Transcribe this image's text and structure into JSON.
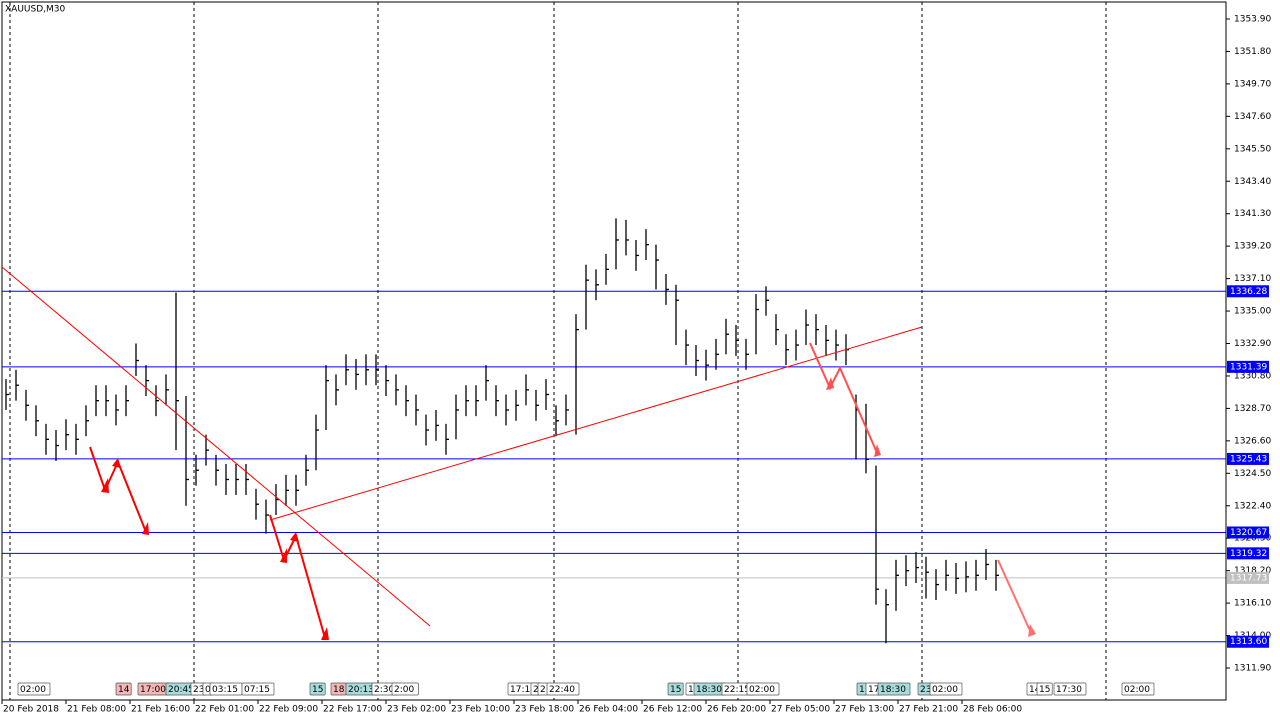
{
  "chart_data": {
    "type": "ohlc",
    "title": "XAUUSD,M30",
    "x": [
      0,
      1,
      2,
      3,
      4,
      5,
      6,
      7,
      8,
      9,
      10,
      11,
      12,
      13,
      14,
      15,
      16,
      17,
      18,
      19,
      20,
      21,
      22,
      23,
      24,
      25,
      26,
      27,
      28,
      29,
      30,
      31,
      32,
      33,
      34,
      35,
      36,
      37,
      38,
      39,
      40,
      41,
      42,
      43,
      44,
      45,
      46,
      47,
      48,
      49,
      50,
      51,
      52,
      53,
      54,
      55,
      56,
      57,
      58,
      59,
      60,
      61,
      62,
      63,
      64,
      65,
      66,
      67,
      68,
      69,
      70,
      71,
      72,
      73,
      74,
      75,
      76,
      77,
      78,
      79,
      80,
      81,
      82,
      83,
      84,
      85,
      86,
      87,
      88,
      89,
      90,
      91,
      92,
      93,
      94,
      95,
      96,
      97,
      98,
      99
    ],
    "high": [
      1330.6,
      1331.2,
      1329.9,
      1328.9,
      1327.7,
      1327.3,
      1328.0,
      1327.7,
      1328.9,
      1330.2,
      1330.2,
      1329.6,
      1330.2,
      1332.9,
      1331.5,
      1330.2,
      1330.9,
      1336.2,
      1329.5,
      1325.7,
      1327.0,
      1325.7,
      1325.1,
      1325.1,
      1325.1,
      1323.5,
      1322.8,
      1323.8,
      1324.4,
      1324.4,
      1325.7,
      1328.3,
      1331.5,
      1330.9,
      1332.2,
      1331.9,
      1332.2,
      1332.2,
      1331.5,
      1330.9,
      1330.2,
      1329.6,
      1328.3,
      1328.6,
      1327.7,
      1329.6,
      1330.2,
      1330.2,
      1331.5,
      1330.2,
      1329.6,
      1329.9,
      1330.9,
      1329.9,
      1330.6,
      1328.9,
      1329.6,
      1334.8,
      1338.0,
      1337.7,
      1338.7,
      1341.0,
      1340.9,
      1339.6,
      1340.3,
      1339.3,
      1337.4,
      1336.7,
      1333.8,
      1332.8,
      1332.5,
      1333.2,
      1334.5,
      1334.1,
      1333.2,
      1336.1,
      1336.6,
      1334.8,
      1333.5,
      1333.8,
      1335.1,
      1334.8,
      1334.1,
      1333.8,
      1333.5,
      1329.6,
      1329.0,
      1325.0,
      1317.0,
      1318.9,
      1319.2,
      1319.4,
      1319.1,
      1318.3,
      1318.9,
      1318.7,
      1318.8,
      1318.9,
      1319.6,
      1318.9
    ],
    "low": [
      1328.6,
      1329.2,
      1327.9,
      1326.9,
      1325.7,
      1325.3,
      1326.0,
      1325.7,
      1326.9,
      1328.2,
      1328.2,
      1327.6,
      1328.2,
      1330.8,
      1329.5,
      1328.2,
      1328.9,
      1326.0,
      1322.4,
      1323.7,
      1325.0,
      1323.7,
      1323.1,
      1323.1,
      1323.1,
      1321.5,
      1320.6,
      1321.8,
      1322.4,
      1322.4,
      1323.7,
      1324.7,
      1327.3,
      1328.9,
      1330.2,
      1329.9,
      1330.2,
      1330.2,
      1329.5,
      1328.9,
      1328.2,
      1327.6,
      1326.3,
      1326.6,
      1325.7,
      1326.7,
      1328.2,
      1328.2,
      1329.2,
      1328.2,
      1327.6,
      1327.9,
      1328.9,
      1327.9,
      1328.6,
      1326.9,
      1327.6,
      1327.0,
      1333.8,
      1335.7,
      1336.7,
      1337.7,
      1338.6,
      1337.6,
      1338.3,
      1336.4,
      1335.4,
      1332.8,
      1331.5,
      1330.8,
      1330.5,
      1331.2,
      1332.2,
      1332.1,
      1331.2,
      1332.2,
      1334.7,
      1332.8,
      1331.5,
      1331.8,
      1332.8,
      1332.8,
      1332.1,
      1331.8,
      1331.5,
      1325.4,
      1324.5,
      1316.0,
      1313.5,
      1315.6,
      1317.2,
      1317.4,
      1316.4,
      1316.3,
      1316.9,
      1316.7,
      1316.8,
      1316.9,
      1317.6,
      1316.9
    ],
    "close": [
      1329.6,
      1330.2,
      1328.9,
      1327.9,
      1326.7,
      1326.3,
      1327.0,
      1326.7,
      1327.9,
      1329.2,
      1329.2,
      1328.6,
      1329.2,
      1331.8,
      1330.5,
      1329.2,
      1329.9,
      1329.2,
      1324.1,
      1324.7,
      1326.0,
      1324.7,
      1324.1,
      1324.1,
      1324.1,
      1322.5,
      1321.8,
      1322.8,
      1323.4,
      1323.4,
      1324.7,
      1327.3,
      1330.5,
      1329.9,
      1331.2,
      1330.9,
      1331.2,
      1331.2,
      1330.5,
      1329.9,
      1329.2,
      1328.6,
      1327.3,
      1327.6,
      1326.7,
      1328.6,
      1329.2,
      1329.2,
      1330.5,
      1329.2,
      1328.6,
      1328.9,
      1329.9,
      1328.9,
      1329.6,
      1327.9,
      1328.6,
      1333.8,
      1337.0,
      1336.7,
      1337.7,
      1339.6,
      1339.6,
      1338.6,
      1339.3,
      1338.3,
      1336.4,
      1335.7,
      1332.8,
      1331.8,
      1331.5,
      1332.2,
      1333.5,
      1333.1,
      1332.2,
      1335.1,
      1335.7,
      1333.8,
      1332.5,
      1332.8,
      1334.1,
      1333.8,
      1333.1,
      1332.8,
      1332.5,
      1328.6,
      1325.4,
      1317.0,
      1316.0,
      1317.9,
      1318.2,
      1318.4,
      1318.1,
      1317.3,
      1317.9,
      1317.7,
      1317.8,
      1317.9,
      1318.6,
      1317.9
    ],
    "color": "#000000",
    "xlim": [
      -0.4,
      122
    ],
    "ylim": [
      1309.83,
      1355.0
    ],
    "yticks": [
      {
        "value": 1353.9,
        "label": "1353.90"
      },
      {
        "value": 1351.8,
        "label": "1351.80"
      },
      {
        "value": 1349.7,
        "label": "1349.70"
      },
      {
        "value": 1347.6,
        "label": "1347.60"
      },
      {
        "value": 1345.5,
        "label": "1345.50"
      },
      {
        "value": 1343.4,
        "label": "1343.40"
      },
      {
        "value": 1341.3,
        "label": "1341.30"
      },
      {
        "value": 1339.2,
        "label": "1339.20"
      },
      {
        "value": 1337.1,
        "label": "1337.10"
      },
      {
        "value": 1335,
        "label": "1335.00"
      },
      {
        "value": 1332.9,
        "label": "1332.90"
      },
      {
        "value": 1330.8,
        "label": "1330.80"
      },
      {
        "value": 1328.7,
        "label": "1328.70"
      },
      {
        "value": 1326.6,
        "label": "1326.60"
      },
      {
        "value": 1324.5,
        "label": "1324.50"
      },
      {
        "value": 1322.4,
        "label": "1322.40"
      },
      {
        "value": 1320.3,
        "label": "1320.30"
      },
      {
        "value": 1318.2,
        "label": "1318.20"
      },
      {
        "value": 1316.1,
        "label": "1316.10"
      },
      {
        "value": 1314,
        "label": "1314.00"
      },
      {
        "value": 1311.9,
        "label": "1311.90"
      }
    ],
    "xticks": [
      {
        "value": -0.4,
        "label": "20 Feb 2018"
      },
      {
        "value": 6,
        "label": "21 Feb 08:00"
      },
      {
        "value": 12.4,
        "label": "21 Feb 16:00"
      },
      {
        "value": 18.8,
        "label": "22 Feb 01:00"
      },
      {
        "value": 25.2,
        "label": "22 Feb 09:00"
      },
      {
        "value": 31.6,
        "label": "22 Feb 17:00"
      },
      {
        "value": 38,
        "label": "23 Feb 02:00"
      },
      {
        "value": 44.4,
        "label": "23 Feb 10:00"
      },
      {
        "value": 50.8,
        "label": "23 Feb 18:00"
      },
      {
        "value": 57.2,
        "label": "26 Feb 04:00"
      },
      {
        "value": 63.6,
        "label": "26 Feb 12:00"
      },
      {
        "value": 70,
        "label": "26 Feb 20:00"
      },
      {
        "value": 76.4,
        "label": "27 Feb 05:00"
      },
      {
        "value": 82.8,
        "label": "27 Feb 13:00"
      },
      {
        "value": 89.2,
        "label": "27 Feb 21:00"
      },
      {
        "value": 95.6,
        "label": "28 Feb 06:00"
      }
    ],
    "day_separators": [
      0.4,
      18.8,
      37.2,
      54.8,
      73.2,
      91.6,
      110
    ],
    "levels": [
      1336.28,
      1331.39,
      1325.43,
      1320.67,
      1319.32,
      {
        "value": 1313.6,
        "label": "1313.60"
      }
    ],
    "level_color": "#0000ff",
    "current_price": 1317.73,
    "current_color": "#c0c0c0",
    "event_labels": [
      {
        "x": 1.2,
        "label": "02:00",
        "color": "#ffffff"
      },
      {
        "x": 11,
        "label": "14",
        "color": "#f4b6b6"
      },
      {
        "x": 13.2,
        "label": "17:00",
        "color": "#f4b6b6"
      },
      {
        "x": 16,
        "label": "20:45",
        "color": "#a8dcdc"
      },
      {
        "x": 18.5,
        "label": "23",
        "color": "#ffffff"
      },
      {
        "x": 19.7,
        "label": "0",
        "color": "#ffffff"
      },
      {
        "x": 20.4,
        "label": "03:15",
        "color": "#ffffff"
      },
      {
        "x": 23.6,
        "label": "07:15",
        "color": "#ffffff"
      },
      {
        "x": 30.4,
        "label": "15",
        "color": "#a8dcdc"
      },
      {
        "x": 32.5,
        "label": "18",
        "color": "#f4b6b6"
      },
      {
        "x": 34,
        "label": "20:13",
        "color": "#a8dcdc"
      },
      {
        "x": 36.6,
        "label": "2:30",
        "color": "#ffffff"
      },
      {
        "x": 38.6,
        "label": "2:00",
        "color": "#ffffff"
      },
      {
        "x": 50.2,
        "label": "17:15",
        "color": "#ffffff"
      },
      {
        "x": 52.5,
        "label": "2",
        "color": "#ffffff"
      },
      {
        "x": 53.2,
        "label": "2",
        "color": "#ffffff"
      },
      {
        "x": 54.1,
        "label": "22:40",
        "color": "#ffffff"
      },
      {
        "x": 66.2,
        "label": "15",
        "color": "#a8dcdc"
      },
      {
        "x": 68,
        "label": "1",
        "color": "#ffffff"
      },
      {
        "x": 68.8,
        "label": "18:30",
        "color": "#a8dcdc"
      },
      {
        "x": 71.6,
        "label": "22:15",
        "color": "#ffffff"
      },
      {
        "x": 74.1,
        "label": "02:00",
        "color": "#ffffff"
      },
      {
        "x": 85.1,
        "label": "1",
        "color": "#a8dcdc"
      },
      {
        "x": 86,
        "label": "17",
        "color": "#ffffff"
      },
      {
        "x": 87.2,
        "label": "18:30",
        "color": "#a8dcdc"
      },
      {
        "x": 91.2,
        "label": "23",
        "color": "#a8dcdc"
      },
      {
        "x": 92.4,
        "label": "02:00",
        "color": "#ffffff"
      },
      {
        "x": 102.1,
        "label": "14",
        "color": "#ffffff"
      },
      {
        "x": 103.1,
        "label": "15",
        "color": "#ffffff"
      },
      {
        "x": 104.8,
        "label": "17:30",
        "color": "#ffffff"
      },
      {
        "x": 111.6,
        "label": "02:00",
        "color": "#ffffff"
      }
    ]
  }
}
